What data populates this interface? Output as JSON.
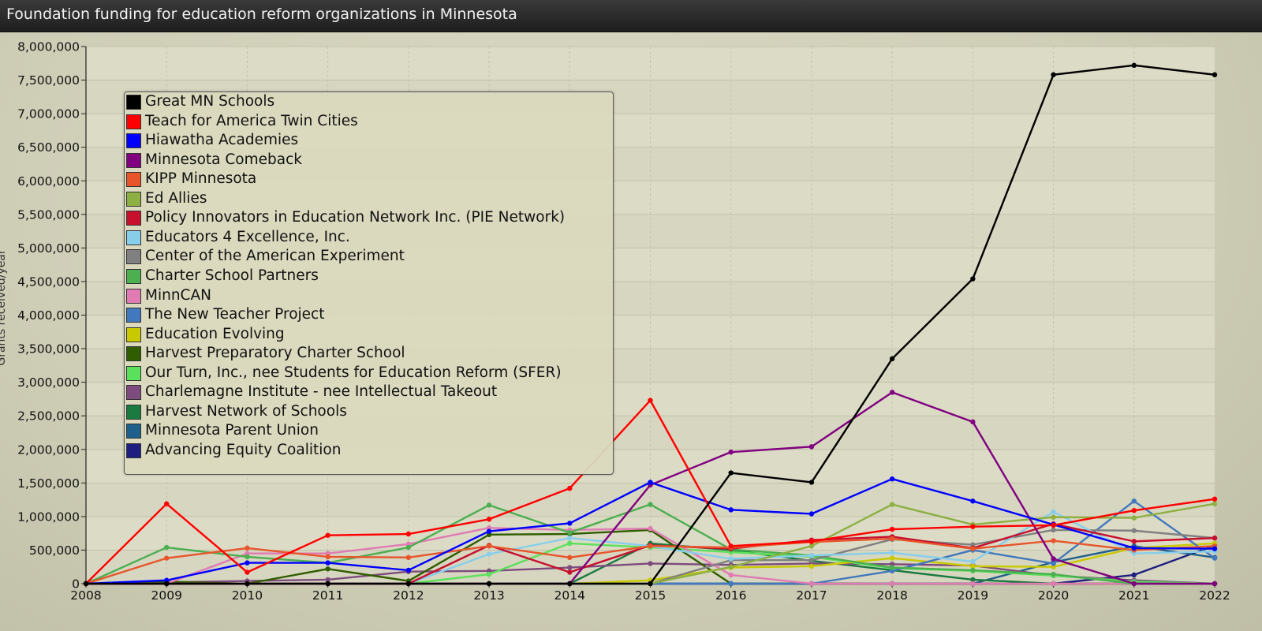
{
  "window": {
    "title": "Foundation funding for education reform organizations in Minnesota"
  },
  "chart_data": {
    "type": "line",
    "title": "Foundation funding for education reform organizations in Minnesota",
    "xlabel": "",
    "ylabel": "Grants received/year",
    "x": [
      2008,
      2009,
      2010,
      2011,
      2012,
      2013,
      2014,
      2015,
      2016,
      2017,
      2018,
      2019,
      2020,
      2021,
      2022
    ],
    "x_tick_labels": [
      "2008",
      "2009",
      "2010",
      "2011",
      "2012",
      "2013",
      "2014",
      "2015",
      "2016",
      "2017",
      "2018",
      "2019",
      "2020",
      "2021",
      "2022"
    ],
    "ylim": [
      0,
      8000000
    ],
    "y_ticks": [
      0,
      500000,
      1000000,
      1500000,
      2000000,
      2500000,
      3000000,
      3500000,
      4000000,
      4500000,
      5000000,
      5500000,
      6000000,
      6500000,
      7000000,
      7500000,
      8000000
    ],
    "y_tick_labels": [
      "0",
      "500,000",
      "1,000,000",
      "1,500,000",
      "2,000,000",
      "2,500,000",
      "3,000,000",
      "3,500,000",
      "4,000,000",
      "4,500,000",
      "5,000,000",
      "5,500,000",
      "6,000,000",
      "6,500,000",
      "7,000,000",
      "7,500,000",
      "8,000,000"
    ],
    "grid": true,
    "legend_position": "top-left",
    "series": [
      {
        "name": "Great MN Schools",
        "color": "#000000",
        "values": [
          0,
          0,
          0,
          0,
          0,
          0,
          0,
          0,
          1650000,
          1510000,
          3350000,
          4540000,
          7580000,
          7720000,
          7580000
        ]
      },
      {
        "name": "Teach for America Twin Cities",
        "color": "#ff0000",
        "values": [
          0,
          1190000,
          170000,
          720000,
          740000,
          960000,
          1420000,
          2730000,
          560000,
          630000,
          810000,
          850000,
          870000,
          1090000,
          1260000
        ]
      },
      {
        "name": "Hiawatha Academies",
        "color": "#0000ff",
        "values": [
          0,
          50000,
          310000,
          310000,
          200000,
          780000,
          900000,
          1510000,
          1100000,
          1040000,
          1560000,
          1230000,
          880000,
          530000,
          520000
        ]
      },
      {
        "name": "Minnesota Comeback",
        "color": "#800080",
        "values": [
          0,
          0,
          0,
          0,
          0,
          0,
          0,
          1470000,
          1960000,
          2040000,
          2850000,
          2410000,
          370000,
          0,
          0
        ]
      },
      {
        "name": "KIPP Minnesota",
        "color": "#e8552b",
        "values": [
          0,
          380000,
          530000,
          400000,
          390000,
          560000,
          390000,
          560000,
          540000,
          620000,
          670000,
          520000,
          640000,
          500000,
          560000
        ]
      },
      {
        "name": "Ed Allies",
        "color": "#8db043",
        "values": [
          0,
          0,
          0,
          0,
          0,
          0,
          0,
          0,
          250000,
          560000,
          1180000,
          880000,
          990000,
          980000,
          1190000
        ]
      },
      {
        "name": "Policy Innovators in Education Network Inc. (PIE Network)",
        "color": "#c8102e",
        "values": [
          0,
          0,
          0,
          0,
          0,
          570000,
          170000,
          570000,
          520000,
          650000,
          700000,
          530000,
          890000,
          630000,
          680000
        ]
      },
      {
        "name": "Educators 4 Excellence, Inc.",
        "color": "#87ceeb",
        "values": [
          0,
          0,
          0,
          0,
          0,
          440000,
          680000,
          560000,
          370000,
          420000,
          460000,
          330000,
          1070000,
          450000,
          480000
        ]
      },
      {
        "name": "Center of the American Experiment",
        "color": "#808080",
        "values": [
          0,
          0,
          0,
          0,
          0,
          0,
          0,
          0,
          350000,
          350000,
          660000,
          580000,
          800000,
          790000,
          680000
        ]
      },
      {
        "name": "Charter School Partners",
        "color": "#4caf50",
        "values": [
          0,
          540000,
          400000,
          310000,
          540000,
          1170000,
          760000,
          1180000,
          510000,
          420000,
          240000,
          200000,
          140000,
          0,
          0
        ]
      },
      {
        "name": "MinnCAN",
        "color": "#e07bb3",
        "values": [
          0,
          0,
          450000,
          450000,
          590000,
          830000,
          800000,
          820000,
          130000,
          0,
          0,
          0,
          0,
          0,
          0
        ]
      },
      {
        "name": "The New Teacher Project",
        "color": "#4178be",
        "values": [
          0,
          0,
          0,
          0,
          0,
          0,
          0,
          0,
          0,
          0,
          190000,
          500000,
          300000,
          1230000,
          380000
        ]
      },
      {
        "name": "Education Evolving",
        "color": "#c9c900",
        "values": [
          0,
          0,
          0,
          0,
          0,
          0,
          0,
          50000,
          240000,
          260000,
          380000,
          260000,
          250000,
          530000,
          600000
        ]
      },
      {
        "name": "Harvest Preparatory Charter School",
        "color": "#2f5d00",
        "values": [
          0,
          30000,
          0,
          220000,
          40000,
          730000,
          740000,
          800000,
          0,
          0,
          0,
          0,
          0,
          0,
          0
        ]
      },
      {
        "name": "Our Turn, Inc., nee Students for Education Reform (SFER)",
        "color": "#5be05b",
        "values": [
          0,
          0,
          0,
          0,
          0,
          140000,
          600000,
          540000,
          470000,
          400000,
          230000,
          190000,
          120000,
          30000,
          0
        ]
      },
      {
        "name": "Charlemagne Institute - nee Intellectual Takeout",
        "color": "#7d4b7d",
        "values": [
          0,
          20000,
          40000,
          60000,
          180000,
          190000,
          240000,
          300000,
          280000,
          300000,
          290000,
          270000,
          120000,
          50000,
          0
        ]
      },
      {
        "name": "Harvest Network of Schools",
        "color": "#1a7a40",
        "values": [
          0,
          0,
          0,
          0,
          0,
          0,
          0,
          600000,
          500000,
          340000,
          200000,
          60000,
          0,
          0,
          0
        ]
      },
      {
        "name": "Minnesota Parent Union",
        "color": "#1f5f8b",
        "values": [
          0,
          0,
          0,
          0,
          0,
          0,
          0,
          0,
          0,
          0,
          0,
          0,
          320000,
          560000,
          390000
        ]
      },
      {
        "name": "Advancing Equity Coalition",
        "color": "#1e1e80",
        "values": [
          0,
          0,
          0,
          0,
          0,
          0,
          0,
          0,
          0,
          0,
          0,
          0,
          0,
          130000,
          570000
        ]
      }
    ]
  }
}
